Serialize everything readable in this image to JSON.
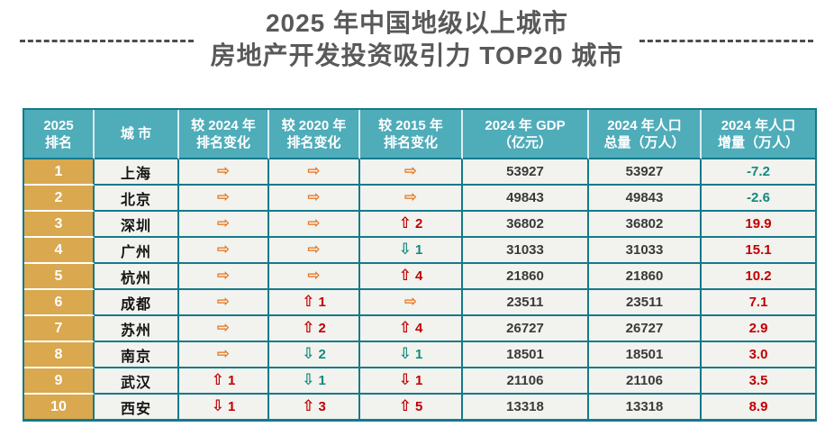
{
  "title": {
    "line1": "2025 年中国地级以上城市",
    "line2": "房地产开发投资吸引力 TOP20 城市"
  },
  "colors": {
    "header_bg": "#4FACB9",
    "rank_column_bg": "#D9A84F",
    "table_border": "#147A8A",
    "row_bg": "#F2F2EE",
    "title_text": "#595959",
    "arrow_flat": "#E4731C",
    "arrow_up": "#C00000",
    "arrow_down": "#12897E",
    "growth_positive": "#C00000",
    "growth_negative": "#12897E"
  },
  "icons": {
    "right_arrow": "⇨",
    "up_arrow": "⇧",
    "down_arrow": "⇩"
  },
  "table": {
    "headers": [
      {
        "line1": "2025",
        "line2": "排名"
      },
      {
        "line1": "城 市",
        "line2": ""
      },
      {
        "line1": "较 2024 年",
        "line2": "排名变化"
      },
      {
        "line1": "较 2020 年",
        "line2": "排名变化"
      },
      {
        "line1": "较 2015 年",
        "line2": "排名变化"
      },
      {
        "line1": "2024 年 GDP",
        "line2": "（亿元）"
      },
      {
        "line1": "2024 年人口",
        "line2": "总量（万人）"
      },
      {
        "line1": "2024 年人口",
        "line2": "增量（万人）"
      }
    ],
    "rows": [
      {
        "rank": "1",
        "city": "上海",
        "vs2024": {
          "dir": "right",
          "num": "",
          "color": "orange"
        },
        "vs2020": {
          "dir": "right",
          "num": "",
          "color": "orange"
        },
        "vs2015": {
          "dir": "right",
          "num": "",
          "color": "orange"
        },
        "gdp": "53927",
        "pop_total": "53927",
        "pop_growth": "-7.2",
        "growth_color": "teal"
      },
      {
        "rank": "2",
        "city": "北京",
        "vs2024": {
          "dir": "right",
          "num": "",
          "color": "orange"
        },
        "vs2020": {
          "dir": "right",
          "num": "",
          "color": "orange"
        },
        "vs2015": {
          "dir": "right",
          "num": "",
          "color": "orange"
        },
        "gdp": "49843",
        "pop_total": "49843",
        "pop_growth": "-2.6",
        "growth_color": "teal"
      },
      {
        "rank": "3",
        "city": "深圳",
        "vs2024": {
          "dir": "right",
          "num": "",
          "color": "orange"
        },
        "vs2020": {
          "dir": "right",
          "num": "",
          "color": "orange"
        },
        "vs2015": {
          "dir": "up",
          "num": "2",
          "color": "red"
        },
        "gdp": "36802",
        "pop_total": "36802",
        "pop_growth": "19.9",
        "growth_color": "red"
      },
      {
        "rank": "4",
        "city": "广州",
        "vs2024": {
          "dir": "right",
          "num": "",
          "color": "orange"
        },
        "vs2020": {
          "dir": "right",
          "num": "",
          "color": "orange"
        },
        "vs2015": {
          "dir": "down",
          "num": "1",
          "color": "teal"
        },
        "gdp": "31033",
        "pop_total": "31033",
        "pop_growth": "15.1",
        "growth_color": "red"
      },
      {
        "rank": "5",
        "city": "杭州",
        "vs2024": {
          "dir": "right",
          "num": "",
          "color": "orange"
        },
        "vs2020": {
          "dir": "right",
          "num": "",
          "color": "orange"
        },
        "vs2015": {
          "dir": "up",
          "num": "4",
          "color": "red"
        },
        "gdp": "21860",
        "pop_total": "21860",
        "pop_growth": "10.2",
        "growth_color": "red"
      },
      {
        "rank": "6",
        "city": "成都",
        "vs2024": {
          "dir": "right",
          "num": "",
          "color": "orange"
        },
        "vs2020": {
          "dir": "up",
          "num": "1",
          "color": "red"
        },
        "vs2015": {
          "dir": "right",
          "num": "",
          "color": "orange"
        },
        "gdp": "23511",
        "pop_total": "23511",
        "pop_growth": "7.1",
        "growth_color": "red"
      },
      {
        "rank": "7",
        "city": "苏州",
        "vs2024": {
          "dir": "right",
          "num": "",
          "color": "orange"
        },
        "vs2020": {
          "dir": "up",
          "num": "2",
          "color": "red"
        },
        "vs2015": {
          "dir": "up",
          "num": "4",
          "color": "red"
        },
        "gdp": "26727",
        "pop_total": "26727",
        "pop_growth": "2.9",
        "growth_color": "red"
      },
      {
        "rank": "8",
        "city": "南京",
        "vs2024": {
          "dir": "right",
          "num": "",
          "color": "orange"
        },
        "vs2020": {
          "dir": "down",
          "num": "2",
          "color": "teal"
        },
        "vs2015": {
          "dir": "down",
          "num": "1",
          "color": "teal"
        },
        "gdp": "18501",
        "pop_total": "18501",
        "pop_growth": "3.0",
        "growth_color": "red"
      },
      {
        "rank": "9",
        "city": "武汉",
        "vs2024": {
          "dir": "up",
          "num": "1",
          "color": "red"
        },
        "vs2020": {
          "dir": "down",
          "num": "1",
          "color": "teal"
        },
        "vs2015": {
          "dir": "down",
          "num": "1",
          "color": "red"
        },
        "gdp": "21106",
        "pop_total": "21106",
        "pop_growth": "3.5",
        "growth_color": "red"
      },
      {
        "rank": "10",
        "city": "西安",
        "vs2024": {
          "dir": "down",
          "num": "1",
          "color": "red"
        },
        "vs2020": {
          "dir": "up",
          "num": "3",
          "color": "red"
        },
        "vs2015": {
          "dir": "up",
          "num": "5",
          "color": "red"
        },
        "gdp": "13318",
        "pop_total": "13318",
        "pop_growth": "8.9",
        "growth_color": "red"
      }
    ]
  }
}
